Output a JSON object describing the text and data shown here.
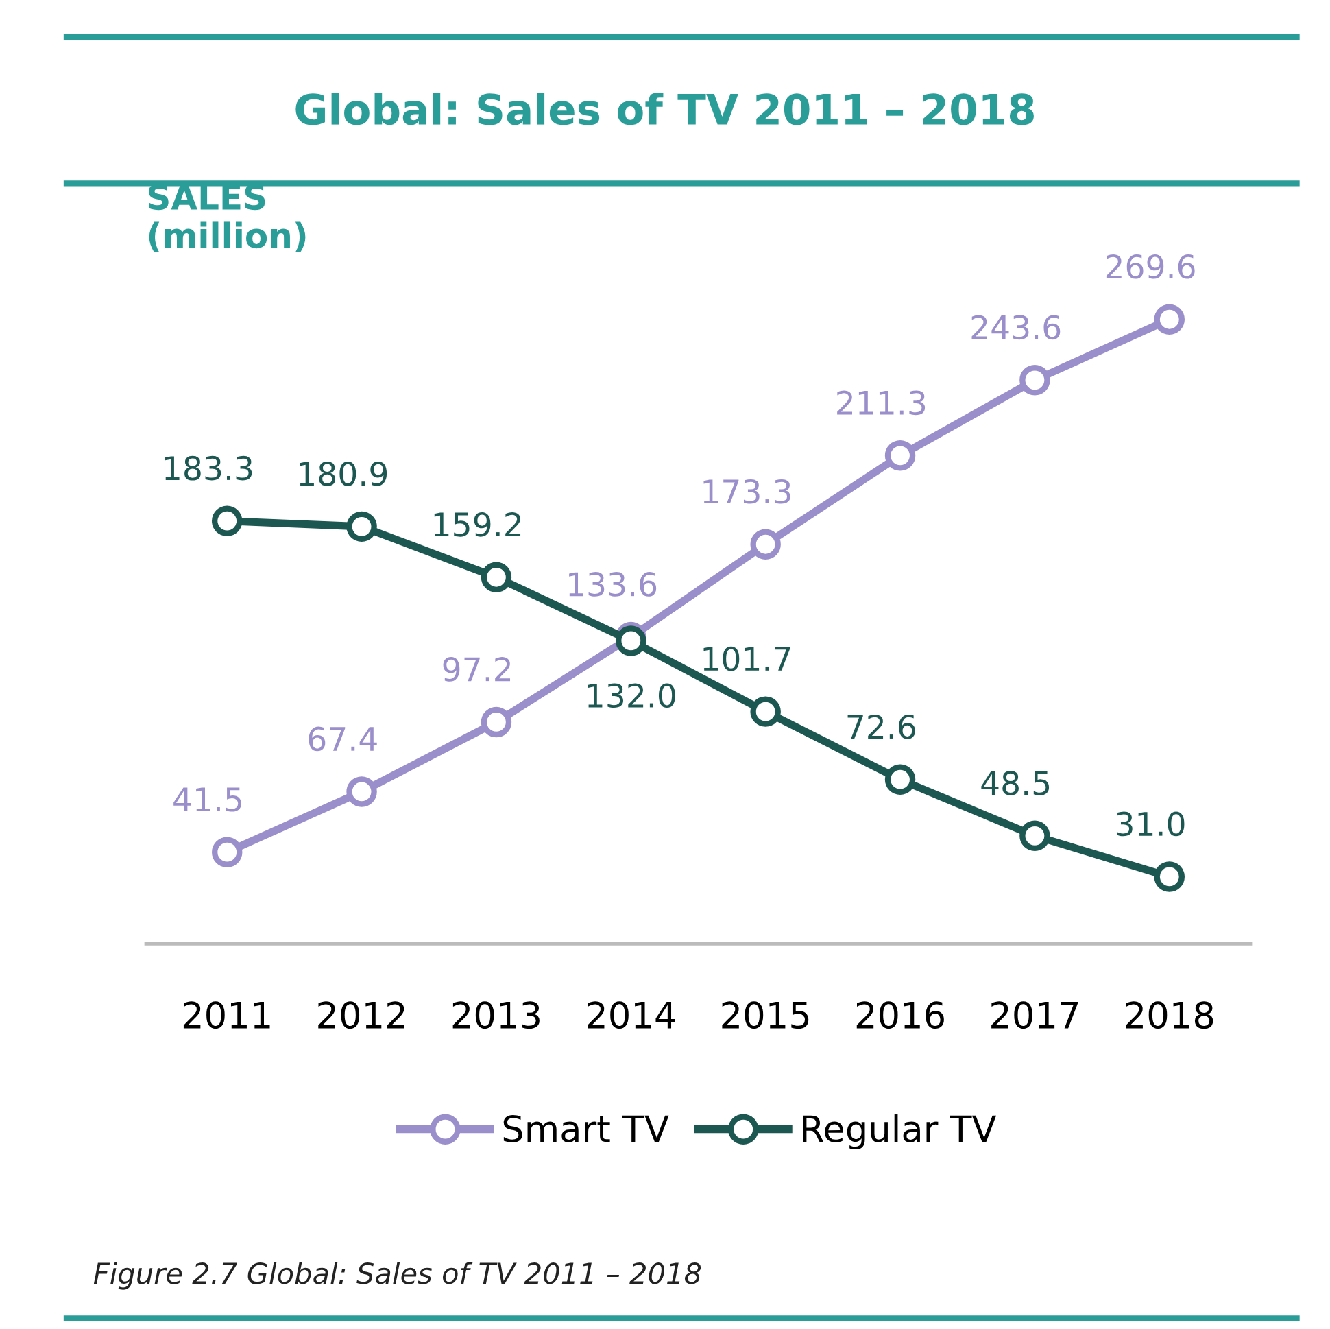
{
  "chart_data": {
    "type": "line",
    "title": "Global: Sales of TV 2011 – 2018",
    "ylabel": "SALES\n(million)",
    "categories": [
      "2011",
      "2012",
      "2013",
      "2014",
      "2015",
      "2016",
      "2017",
      "2018"
    ],
    "series": [
      {
        "name": "Smart TV",
        "color": "#9b8fcb",
        "values": [
          41.5,
          67.4,
          97.2,
          133.6,
          173.3,
          211.3,
          243.6,
          269.6
        ],
        "value_labels": [
          "41.5",
          "67.4",
          "97.2",
          "133.6",
          "173.3",
          "211.3",
          "243.6",
          "269.6"
        ]
      },
      {
        "name": "Regular TV",
        "color": "#1d5752",
        "values": [
          183.3,
          180.9,
          159.2,
          132.0,
          101.7,
          72.6,
          48.5,
          31.0
        ],
        "value_labels": [
          "183.3",
          "180.9",
          "159.2",
          "132.0",
          "101.7",
          "72.6",
          "48.5",
          "31.0"
        ]
      }
    ],
    "marker": "circle",
    "line_style": "solid",
    "grid": false,
    "legend": "bottom",
    "tick_labels": "x",
    "annotations": [
      "Figure 2.7 Global: Sales of TV 2011 – 2018"
    ]
  }
}
